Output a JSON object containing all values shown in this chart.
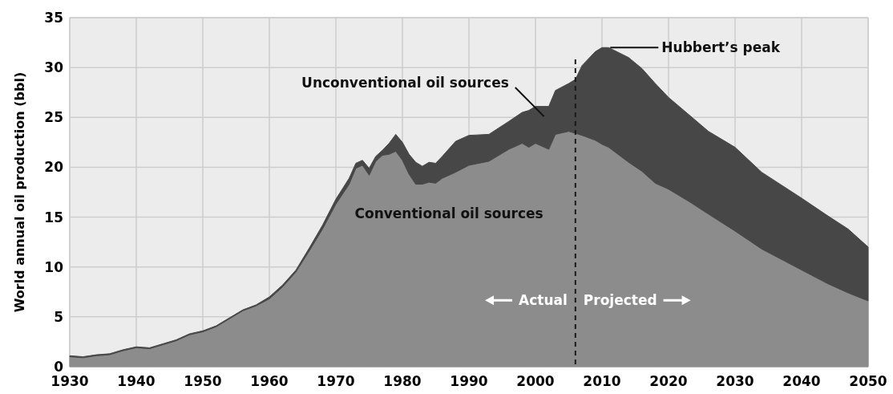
{
  "chart_data": {
    "type": "area",
    "stacked": true,
    "ylabel": "World annual oil production (bbl)",
    "x": [
      1930,
      1932,
      1934,
      1936,
      1938,
      1940,
      1942,
      1944,
      1946,
      1948,
      1950,
      1952,
      1954,
      1956,
      1958,
      1960,
      1962,
      1964,
      1966,
      1968,
      1970,
      1972,
      1973,
      1974,
      1975,
      1976,
      1977,
      1978,
      1979,
      1980,
      1981,
      1982,
      1983,
      1984,
      1985,
      1986,
      1988,
      1990,
      1993,
      1996,
      1998,
      1999,
      2000,
      2002,
      2003,
      2005,
      2006,
      2007,
      2009,
      2010,
      2011,
      2014,
      2016,
      2018,
      2020,
      2023,
      2026,
      2030,
      2034,
      2040,
      2044,
      2047,
      2050
    ],
    "series": [
      {
        "name": "Conventional oil sources",
        "color": "#8c8c8c",
        "values": [
          1.0,
          0.9,
          1.1,
          1.2,
          1.6,
          1.9,
          1.8,
          2.2,
          2.6,
          3.2,
          3.5,
          4.0,
          4.8,
          5.6,
          6.1,
          6.8,
          8.0,
          9.5,
          11.6,
          13.8,
          16.3,
          18.3,
          19.9,
          20.2,
          19.2,
          20.6,
          21.2,
          21.3,
          21.6,
          20.7,
          19.3,
          18.3,
          18.3,
          18.5,
          18.4,
          18.9,
          19.5,
          20.2,
          20.6,
          21.8,
          22.4,
          22.0,
          22.4,
          21.8,
          23.3,
          23.6,
          23.4,
          23.2,
          22.7,
          22.3,
          22.0,
          20.5,
          19.6,
          18.4,
          17.8,
          16.6,
          15.3,
          13.6,
          11.8,
          9.7,
          8.3,
          7.4,
          6.6
        ]
      },
      {
        "name": "Unconventional oil sources",
        "color": "#474747",
        "values": [
          0.1,
          0.1,
          0.1,
          0.1,
          0.1,
          0.1,
          0.1,
          0.1,
          0.1,
          0.1,
          0.1,
          0.1,
          0.1,
          0.1,
          0.1,
          0.2,
          0.2,
          0.2,
          0.3,
          0.4,
          0.5,
          0.6,
          0.5,
          0.5,
          0.7,
          0.5,
          0.5,
          1.1,
          1.7,
          1.8,
          2.0,
          2.2,
          1.8,
          2.0,
          2.0,
          2.2,
          3.1,
          3.0,
          2.7,
          2.8,
          3.1,
          3.7,
          3.7,
          4.3,
          4.4,
          4.8,
          5.4,
          7.0,
          8.9,
          9.7,
          10.0,
          10.5,
          10.3,
          10.0,
          9.2,
          8.7,
          8.3,
          8.4,
          7.7,
          7.2,
          6.8,
          6.4,
          5.4
        ]
      }
    ],
    "xlim": [
      1930,
      2050
    ],
    "xticks": [
      1930,
      1940,
      1950,
      1960,
      1970,
      1980,
      1990,
      2000,
      2010,
      2020,
      2030,
      2040,
      2050
    ],
    "ylim": [
      0,
      35
    ],
    "yticks": [
      0,
      5,
      10,
      15,
      20,
      25,
      30,
      35
    ],
    "grid": true,
    "legend": false,
    "ref_lines": [
      {
        "axis": "x",
        "value": 2006,
        "color": "#1a1a1a",
        "line_style": "dashed"
      }
    ],
    "annotations": [
      {
        "text": "Hubbert’s peak",
        "x": 2011,
        "y": 32
      },
      "Actual",
      "Projected"
    ]
  }
}
